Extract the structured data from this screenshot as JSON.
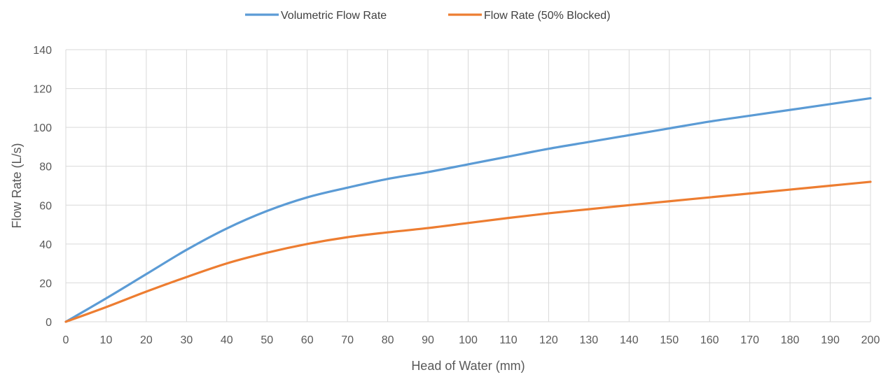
{
  "chart_data": {
    "type": "line",
    "title": "",
    "xlabel": "Head of Water (mm)",
    "ylabel": "Flow Rate (L/s)",
    "xlim": [
      0,
      200
    ],
    "ylim": [
      0,
      140
    ],
    "x_ticks": [
      0,
      10,
      20,
      30,
      40,
      50,
      60,
      70,
      80,
      90,
      100,
      110,
      120,
      130,
      140,
      150,
      160,
      170,
      180,
      190,
      200
    ],
    "y_ticks": [
      0,
      20,
      40,
      60,
      80,
      100,
      120,
      140
    ],
    "grid": true,
    "legend_position": "top",
    "x": [
      0,
      10,
      20,
      30,
      40,
      50,
      60,
      70,
      80,
      90,
      100,
      110,
      120,
      130,
      140,
      150,
      160,
      170,
      180,
      190,
      200
    ],
    "series": [
      {
        "name": "Volumetric Flow Rate",
        "color": "#5b9bd5",
        "values": [
          0,
          12,
          24.5,
          37,
          48,
          57,
          64,
          69,
          73.5,
          77,
          81,
          85,
          89,
          92.5,
          96,
          99.5,
          103,
          106,
          109,
          112,
          115
        ]
      },
      {
        "name": "Flow Rate (50% Blocked)",
        "color": "#ed7d31",
        "values": [
          0,
          7.5,
          15.5,
          23,
          30,
          35.5,
          40,
          43.5,
          46,
          48.2,
          50.8,
          53.4,
          55.8,
          57.9,
          60,
          62,
          64,
          66,
          68,
          70,
          72
        ]
      }
    ]
  }
}
